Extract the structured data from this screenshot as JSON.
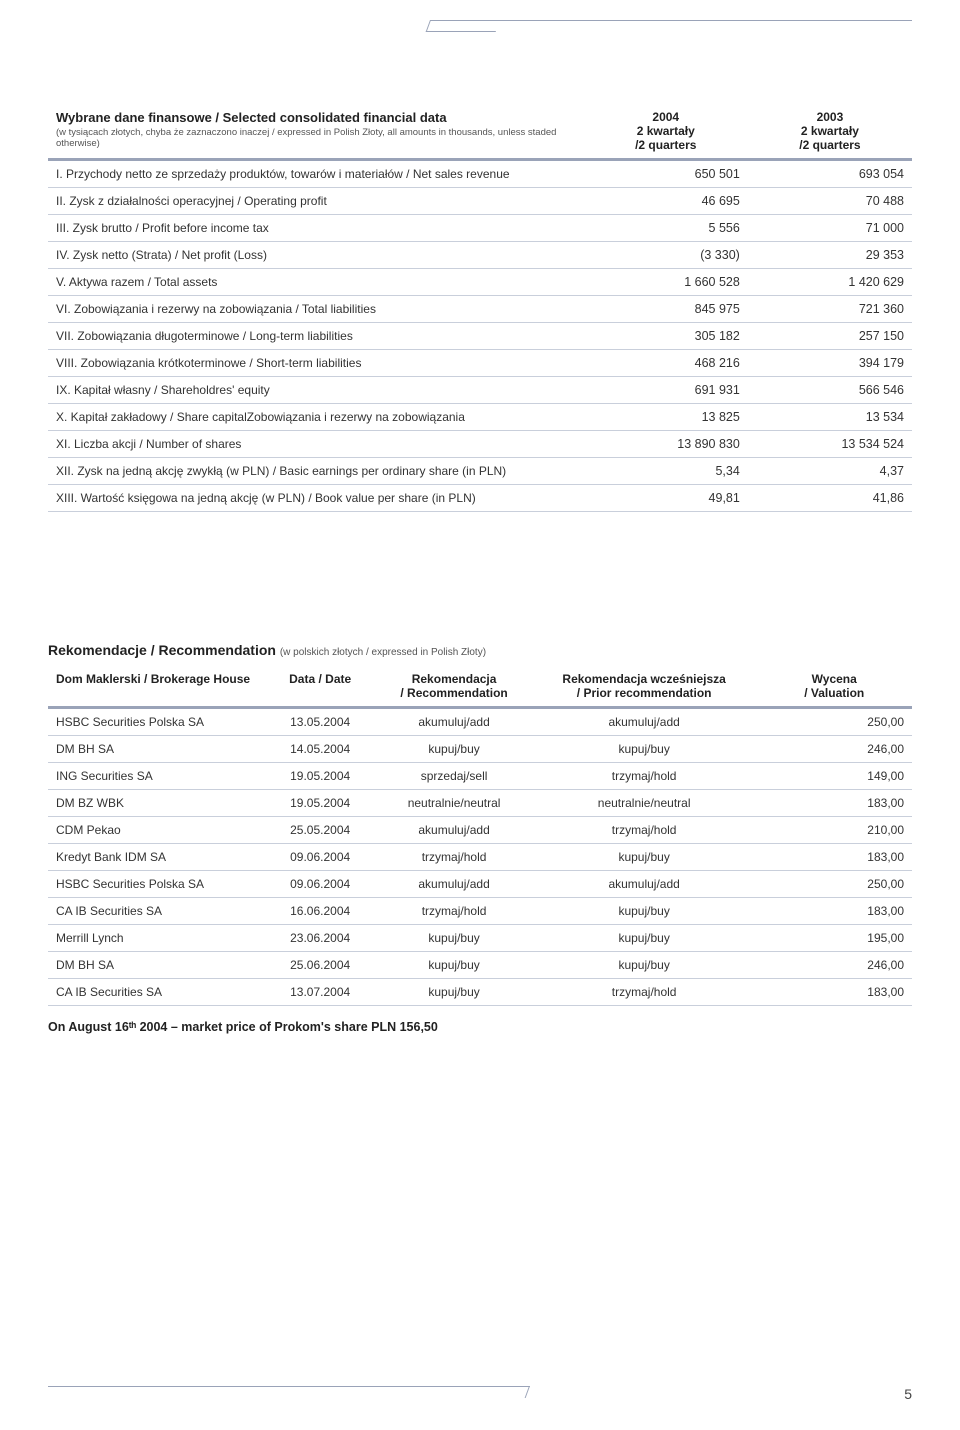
{
  "page_number": "5",
  "table1": {
    "label_col": {
      "title": "Wybrane dane finansowe / Selected consolidated financial data",
      "subtitle": "(w tysiącach złotych, chyba że zaznaczono inaczej / expressed in Polish Złoty, all amounts in thousands, unless staded otherwise)"
    },
    "cols": [
      {
        "l1": "2004",
        "l2": "2 kwartały",
        "l3": "/2 quarters"
      },
      {
        "l1": "2003",
        "l2": "2 kwartały",
        "l3": "/2 quarters"
      }
    ],
    "rows": [
      {
        "label": "I.   Przychody netto ze sprzedaży produktów, towarów i materiałów / Net sales revenue",
        "v1": "650 501",
        "v2": "693 054"
      },
      {
        "label": "II.  Zysk z działalności operacyjnej / Operating profit",
        "v1": "46 695",
        "v2": "70 488"
      },
      {
        "label": "III. Zysk brutto / Profit before income tax",
        "v1": "5 556",
        "v2": "71 000"
      },
      {
        "label": "IV. Zysk netto (Strata) / Net profit (Loss)",
        "v1": "(3 330)",
        "v2": "29 353"
      },
      {
        "label": "V.  Aktywa razem / Total assets",
        "v1": "1 660 528",
        "v2": "1 420 629"
      },
      {
        "label": "VI. Zobowiązania i rezerwy na zobowiązania / Total liabilities",
        "v1": "845 975",
        "v2": "721 360"
      },
      {
        "label": "VII. Zobowiązania długoterminowe / Long-term liabilities",
        "v1": "305 182",
        "v2": "257 150"
      },
      {
        "label": "VIII. Zobowiązania krótkoterminowe / Short-term liabilities",
        "v1": "468 216",
        "v2": "394 179"
      },
      {
        "label": "IX. Kapitał własny / Shareholdres' equity",
        "v1": "691 931",
        "v2": "566 546"
      },
      {
        "label": "X.  Kapitał zakładowy / Share capitalZobowiązania i rezerwy na zobowiązania",
        "v1": "13 825",
        "v2": "13 534"
      },
      {
        "label": "XI. Liczba akcji / Number of shares",
        "v1": "13 890 830",
        "v2": "13 534 524"
      },
      {
        "label": "XII. Zysk na jedną akcję zwykłą (w PLN) / Basic earnings per ordinary share (in PLN)",
        "v1": "5,34",
        "v2": "4,37"
      },
      {
        "label": "XIII. Wartość księgowa na jedną akcję (w PLN) / Book value per share (in PLN)",
        "v1": "49,81",
        "v2": "41,86"
      }
    ]
  },
  "section2": {
    "title": "Rekomendacje / Recommendation",
    "subtitle": "(w polskich złotych / expressed in Polish Złoty)"
  },
  "table2": {
    "headers": {
      "house": "Dom Maklerski / Brokerage House",
      "date": "Data / Date",
      "rec": "Rekomendacja\n/ Recommendation",
      "prior": "Rekomendacja wcześniejsza\n/ Prior recommendation",
      "val": "Wycena\n/ Valuation"
    },
    "rows": [
      {
        "house": "HSBC Securities Polska SA",
        "date": "13.05.2004",
        "rec": "akumuluj/add",
        "prior": "akumuluj/add",
        "val": "250,00"
      },
      {
        "house": "DM BH SA",
        "date": "14.05.2004",
        "rec": "kupuj/buy",
        "prior": "kupuj/buy",
        "val": "246,00"
      },
      {
        "house": "ING Securities SA",
        "date": "19.05.2004",
        "rec": "sprzedaj/sell",
        "prior": "trzymaj/hold",
        "val": "149,00"
      },
      {
        "house": "DM BZ WBK",
        "date": "19.05.2004",
        "rec": "neutralnie/neutral",
        "prior": "neutralnie/neutral",
        "val": "183,00"
      },
      {
        "house": "CDM Pekao",
        "date": "25.05.2004",
        "rec": "akumuluj/add",
        "prior": "trzymaj/hold",
        "val": "210,00"
      },
      {
        "house": "Kredyt Bank IDM SA",
        "date": "09.06.2004",
        "rec": "trzymaj/hold",
        "prior": "kupuj/buy",
        "val": "183,00"
      },
      {
        "house": "HSBC Securities Polska SA",
        "date": "09.06.2004",
        "rec": "akumuluj/add",
        "prior": "akumuluj/add",
        "val": "250,00"
      },
      {
        "house": "CA IB Securities SA",
        "date": "16.06.2004",
        "rec": "trzymaj/hold",
        "prior": "kupuj/buy",
        "val": "183,00"
      },
      {
        "house": "Merrill Lynch",
        "date": "23.06.2004",
        "rec": "kupuj/buy",
        "prior": "kupuj/buy",
        "val": "195,00"
      },
      {
        "house": "DM BH SA",
        "date": "25.06.2004",
        "rec": "kupuj/buy",
        "prior": "kupuj/buy",
        "val": "246,00"
      },
      {
        "house": "CA IB Securities SA",
        "date": "13.07.2004",
        "rec": "kupuj/buy",
        "prior": "trzymaj/hold",
        "val": "183,00"
      }
    ]
  },
  "endnote": "On August 16ᵗʰ 2004 – market price of Prokom's share PLN 156,50",
  "colors": {
    "rule": "#9aa3b8",
    "row_border": "#c9cfdb",
    "text": "#333333"
  },
  "fontsizes": {
    "table_body": 12,
    "table1_title": 13,
    "table1_subtitle": 9.5,
    "section2_title": 14,
    "section2_subtitle": 10,
    "endnote": 12.5
  }
}
